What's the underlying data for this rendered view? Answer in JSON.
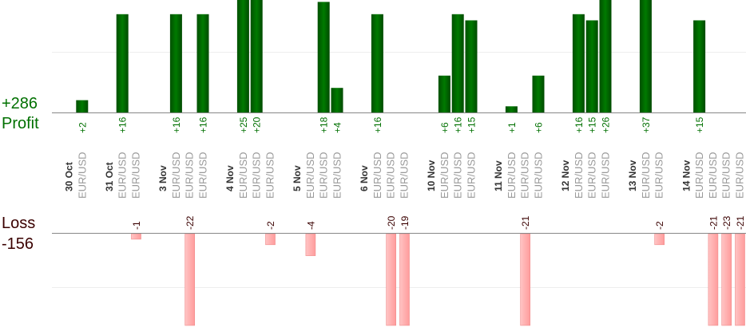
{
  "summary": {
    "profit_total": "+286",
    "profit_label": "Profit",
    "loss_label": "Loss",
    "loss_total": "-156"
  },
  "colors": {
    "profit_bar": "#006400",
    "profit_text": "#007000",
    "loss_bar": "#ffb0b0",
    "loss_text": "#3a0000",
    "axis": "#888888",
    "grid": "#eeeeee"
  },
  "chart_data": {
    "type": "bar",
    "title": "",
    "profit_ylim": [
      0,
      18
    ],
    "loss_ylim": [
      -17,
      0
    ],
    "grid": true,
    "groups": [
      {
        "date": "30 Oct",
        "trades": [
          {
            "symbol": "EUR/USD",
            "value": 2
          }
        ]
      },
      {
        "date": "31 Oct",
        "trades": [
          {
            "symbol": "EUR/USD",
            "value": 16
          },
          {
            "symbol": "EUR/USD",
            "value": -1
          }
        ]
      },
      {
        "date": "3 Nov",
        "trades": [
          {
            "symbol": "EUR/USD",
            "value": 16
          },
          {
            "symbol": "EUR/USD",
            "value": -22
          },
          {
            "symbol": "EUR/USD",
            "value": 16
          }
        ]
      },
      {
        "date": "4 Nov",
        "trades": [
          {
            "symbol": "EUR/USD",
            "value": 25
          },
          {
            "symbol": "EUR/USD",
            "value": 20
          },
          {
            "symbol": "EUR/USD",
            "value": -2
          }
        ]
      },
      {
        "date": "5 Nov",
        "trades": [
          {
            "symbol": "EUR/USD",
            "value": -4
          },
          {
            "symbol": "EUR/USD",
            "value": 18
          },
          {
            "symbol": "EUR/USD",
            "value": 4
          }
        ]
      },
      {
        "date": "6 Nov",
        "trades": [
          {
            "symbol": "EUR/USD",
            "value": 16
          },
          {
            "symbol": "EUR/USD",
            "value": -20
          },
          {
            "symbol": "EUR/USD",
            "value": -19
          }
        ]
      },
      {
        "date": "10 Nov",
        "trades": [
          {
            "symbol": "EUR/USD",
            "value": 6
          },
          {
            "symbol": "EUR/USD",
            "value": 16
          },
          {
            "symbol": "EUR/USD",
            "value": 15
          }
        ]
      },
      {
        "date": "11 Nov",
        "trades": [
          {
            "symbol": "EUR/USD",
            "value": 1
          },
          {
            "symbol": "EUR/USD",
            "value": -21
          },
          {
            "symbol": "EUR/USD",
            "value": 6
          }
        ]
      },
      {
        "date": "12 Nov",
        "trades": [
          {
            "symbol": "EUR/USD",
            "value": 16
          },
          {
            "symbol": "EUR/USD",
            "value": 15
          },
          {
            "symbol": "EUR/USD",
            "value": 26
          }
        ]
      },
      {
        "date": "13 Nov",
        "trades": [
          {
            "symbol": "EUR/USD",
            "value": 37
          },
          {
            "symbol": "EUR/USD",
            "value": -2
          }
        ]
      },
      {
        "date": "14 Nov",
        "trades": [
          {
            "symbol": "EUR/USD",
            "value": 15
          },
          {
            "symbol": "EUR/USD",
            "value": -21
          },
          {
            "symbol": "EUR/USD",
            "value": -23
          },
          {
            "symbol": "EUR/USD",
            "value": -21
          }
        ]
      }
    ]
  }
}
